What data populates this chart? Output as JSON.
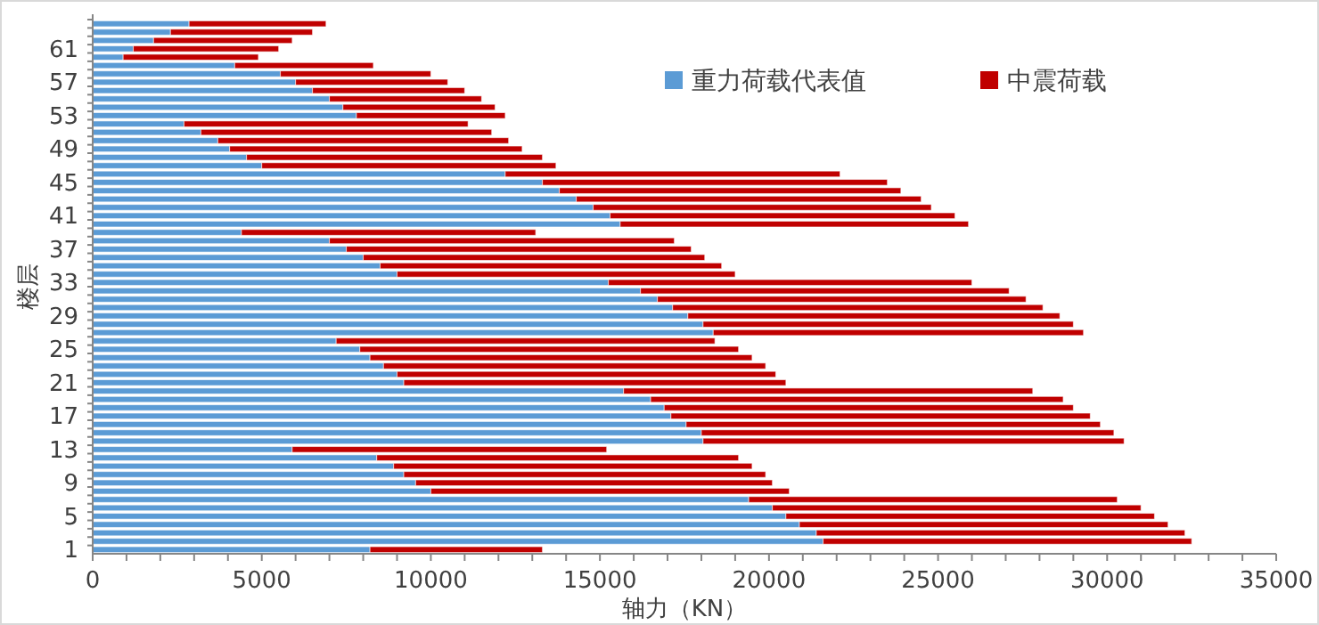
{
  "chart_data": {
    "type": "bar",
    "orientation": "horizontal",
    "stacked": true,
    "xlabel": "轴力（KN）",
    "ylabel": "楼层",
    "legend": "top right",
    "grid": false,
    "categories": [
      null,
      null,
      null,
      "61",
      null,
      null,
      null,
      "57",
      null,
      null,
      null,
      "53",
      null,
      null,
      null,
      "49",
      null,
      null,
      null,
      "45",
      null,
      null,
      null,
      "41",
      null,
      null,
      null,
      "37",
      null,
      null,
      null,
      "33",
      null,
      null,
      null,
      "29",
      null,
      null,
      null,
      "25",
      null,
      null,
      null,
      "21",
      null,
      null,
      null,
      "17",
      null,
      null,
      null,
      "13",
      null,
      null,
      null,
      "9",
      null,
      null,
      null,
      "5",
      null,
      null,
      null,
      "1"
    ],
    "xlim": [
      0,
      35000
    ],
    "xticks": [
      0,
      {
        "value": 1000,
        "label": null
      },
      {
        "value": 2000,
        "label": null
      },
      {
        "value": 3000,
        "label": null
      },
      {
        "value": 4000,
        "label": null
      },
      5000,
      {
        "value": 6000,
        "label": null
      },
      {
        "value": 7000,
        "label": null
      },
      {
        "value": 8000,
        "label": null
      },
      {
        "value": 9000,
        "label": null
      },
      10000,
      {
        "value": 11000,
        "label": null
      },
      {
        "value": 12000,
        "label": null
      },
      {
        "value": 13000,
        "label": null
      },
      {
        "value": 14000,
        "label": null
      },
      15000,
      {
        "value": 16000,
        "label": null
      },
      {
        "value": 17000,
        "label": null
      },
      {
        "value": 18000,
        "label": null
      },
      {
        "value": 19000,
        "label": null
      },
      20000,
      {
        "value": 21000,
        "label": null
      },
      {
        "value": 22000,
        "label": null
      },
      {
        "value": 23000,
        "label": null
      },
      {
        "value": 24000,
        "label": null
      },
      25000,
      {
        "value": 26000,
        "label": null
      },
      {
        "value": 27000,
        "label": null
      },
      {
        "value": 28000,
        "label": null
      },
      {
        "value": 29000,
        "label": null
      },
      30000,
      {
        "value": 31000,
        "label": null
      },
      {
        "value": 32000,
        "label": null
      },
      {
        "value": 33000,
        "label": null
      },
      {
        "value": 34000,
        "label": null
      },
      35000
    ],
    "series": [
      {
        "name": "重力荷载代表值",
        "color": "#5b9bd5",
        "values": [
          2850,
          2300,
          1800,
          1200,
          900,
          4200,
          5550,
          6000,
          6500,
          7000,
          7400,
          7800,
          2700,
          3200,
          3700,
          4050,
          4550,
          5000,
          12200,
          13300,
          13800,
          14300,
          14800,
          15300,
          15600,
          4400,
          7000,
          7500,
          8000,
          8500,
          9000,
          15250,
          16200,
          16700,
          17150,
          17600,
          18050,
          18350,
          7200,
          7900,
          8200,
          8600,
          9000,
          9200,
          15700,
          16500,
          16900,
          17100,
          17550,
          18000,
          18050,
          5900,
          8400,
          8900,
          9200,
          9550,
          10000,
          19400,
          20100,
          20500,
          20900,
          21400,
          21600,
          8200
        ]
      },
      {
        "name": "中震荷载",
        "color": "#c00000",
        "values": [
          4050,
          4200,
          4100,
          4300,
          4000,
          4100,
          4450,
          4500,
          4500,
          4500,
          4500,
          4400,
          8400,
          8600,
          8600,
          8650,
          8750,
          8700,
          9900,
          10200,
          10100,
          10200,
          10000,
          10200,
          10300,
          8700,
          10200,
          10200,
          10100,
          10100,
          10000,
          10750,
          10900,
          10900,
          10950,
          11000,
          10950,
          10950,
          11200,
          11200,
          11300,
          11300,
          11200,
          11300,
          12100,
          12200,
          12100,
          12400,
          12250,
          12200,
          12450,
          9300,
          10700,
          10600,
          10700,
          10550,
          10600,
          10900,
          10900,
          10900,
          10900,
          10900,
          10900,
          5100
        ]
      }
    ]
  }
}
